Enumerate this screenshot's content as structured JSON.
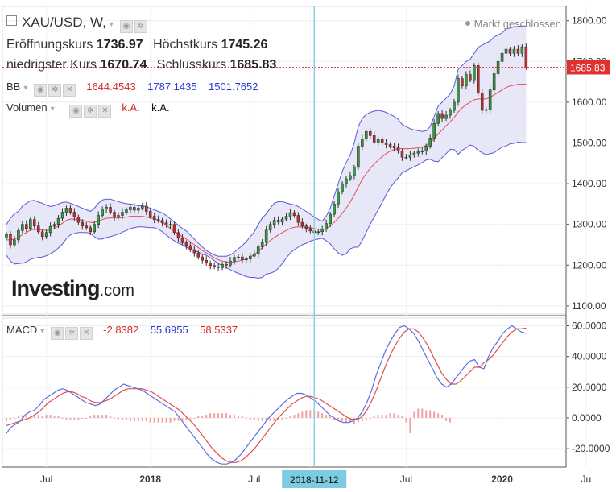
{
  "header": {
    "symbol": "XAU/USD, W,",
    "status": "Markt geschlossen",
    "open_label": "Eröffnungskurs",
    "open": "1736.97",
    "high_label": "Höchstkurs",
    "high": "1745.26",
    "low_label": "niedrigster Kurs",
    "low": "1670.74",
    "close_label": "Schlusskurs",
    "close": "1685.83"
  },
  "indicators": {
    "bb": {
      "label": "BB",
      "mid": "1644.4543",
      "upper": "1787.1435",
      "lower": "1501.7652"
    },
    "volume": {
      "label": "Volumen",
      "v1": "k.A.",
      "v2": "k.A."
    },
    "macd": {
      "label": "MACD",
      "hist": "-2.8382",
      "macd": "55.6955",
      "signal": "58.5337"
    }
  },
  "logo": {
    "brand": "Investing",
    "suffix": ".com"
  },
  "colors": {
    "up": "#2e9e3e",
    "down": "#d52a2a",
    "band_fill": "#e3e3f6",
    "band_line": "#5a5ad8",
    "mid_line": "#e05050",
    "macd_line": "#5a6ee0",
    "signal_line": "#e05050",
    "cursor": "#8fd0e0",
    "crosshair_tag": "#7ccbe0"
  },
  "chart_data": {
    "type": "line",
    "title": "XAU/USD, W",
    "price_axis": {
      "ticks": [
        "1800.00",
        "1700.00",
        "1600.00",
        "1500.00",
        "1400.00",
        "1300.00",
        "1200.00",
        "1100.00"
      ],
      "ylim": [
        1080,
        1835
      ],
      "last_price_label": "1685.83"
    },
    "macd_axis": {
      "ticks": [
        "60.0000",
        "40.0000",
        "20.0000",
        "0.0000",
        "-20.0000"
      ],
      "ylim": [
        -32,
        65
      ]
    },
    "x_axis": {
      "ticks": [
        "Jul",
        "2018",
        "Jul",
        "2018-11-12",
        "Jul",
        "2020",
        "Ju"
      ],
      "crosshair_label": "2018-11-12",
      "xlim": [
        0,
        140
      ]
    },
    "tick_positions": [
      10,
      36,
      62,
      76,
      100,
      124,
      145
    ],
    "crosshair_x": 77,
    "close_series": [
      1275,
      1250,
      1262,
      1285,
      1300,
      1290,
      1312,
      1296,
      1282,
      1270,
      1280,
      1295,
      1300,
      1315,
      1330,
      1340,
      1330,
      1318,
      1305,
      1296,
      1292,
      1282,
      1300,
      1322,
      1338,
      1342,
      1330,
      1318,
      1322,
      1330,
      1336,
      1342,
      1335,
      1340,
      1345,
      1332,
      1320,
      1312,
      1310,
      1304,
      1298,
      1300,
      1280,
      1266,
      1255,
      1248,
      1238,
      1230,
      1220,
      1212,
      1205,
      1199,
      1196,
      1194,
      1202,
      1200,
      1210,
      1219,
      1220,
      1213,
      1215,
      1222,
      1228,
      1245,
      1256,
      1286,
      1300,
      1310,
      1306,
      1313,
      1320,
      1329,
      1322,
      1305,
      1296,
      1290,
      1284,
      1280,
      1282,
      1288,
      1302,
      1325,
      1350,
      1380,
      1400,
      1412,
      1420,
      1440,
      1492,
      1510,
      1528,
      1518,
      1502,
      1510,
      1500,
      1496,
      1492,
      1488,
      1480,
      1465,
      1465,
      1470,
      1475,
      1478,
      1480,
      1492,
      1512,
      1548,
      1572,
      1560,
      1568,
      1580,
      1600,
      1658,
      1640,
      1668,
      1655,
      1690,
      1622,
      1580,
      1582,
      1630,
      1670,
      1700,
      1720,
      1730,
      1720,
      1730,
      1720,
      1736,
      1685
    ],
    "bb_upper_series": [
      1300,
      1315,
      1326,
      1332,
      1345,
      1352,
      1358,
      1359,
      1355,
      1352,
      1347,
      1344,
      1346,
      1350,
      1354,
      1355,
      1352,
      1348,
      1344,
      1340,
      1336,
      1332,
      1340,
      1352,
      1360,
      1362,
      1362,
      1359,
      1356,
      1353,
      1351,
      1350,
      1348,
      1346,
      1346,
      1343,
      1340,
      1336,
      1332,
      1328,
      1322,
      1314,
      1306,
      1298,
      1290,
      1284,
      1274,
      1264,
      1254,
      1245,
      1236,
      1230,
      1225,
      1222,
      1222,
      1222,
      1225,
      1232,
      1240,
      1248,
      1258,
      1270,
      1282,
      1300,
      1316,
      1326,
      1340,
      1352,
      1356,
      1356,
      1353,
      1350,
      1348,
      1344,
      1338,
      1332,
      1325,
      1318,
      1312,
      1308,
      1320,
      1340,
      1370,
      1400,
      1430,
      1452,
      1470,
      1500,
      1540,
      1560,
      1570,
      1575,
      1578,
      1580,
      1578,
      1575,
      1570,
      1565,
      1558,
      1545,
      1540,
      1535,
      1532,
      1530,
      1528,
      1530,
      1540,
      1565,
      1590,
      1600,
      1610,
      1620,
      1640,
      1680,
      1690,
      1700,
      1705,
      1720,
      1735,
      1740,
      1745,
      1750,
      1760,
      1765,
      1770,
      1780,
      1782,
      1785,
      1786,
      1787,
      1787
    ],
    "bb_mid_series": [
      1262,
      1262,
      1264,
      1268,
      1275,
      1280,
      1286,
      1288,
      1287,
      1286,
      1285,
      1286,
      1290,
      1296,
      1303,
      1310,
      1313,
      1313,
      1312,
      1310,
      1308,
      1305,
      1305,
      1308,
      1312,
      1315,
      1316,
      1316,
      1316,
      1317,
      1318,
      1320,
      1320,
      1320,
      1320,
      1318,
      1316,
      1314,
      1310,
      1305,
      1298,
      1290,
      1283,
      1276,
      1270,
      1264,
      1257,
      1250,
      1243,
      1236,
      1230,
      1224,
      1218,
      1213,
      1210,
      1208,
      1207,
      1208,
      1210,
      1212,
      1215,
      1220,
      1226,
      1234,
      1243,
      1252,
      1260,
      1268,
      1274,
      1280,
      1285,
      1290,
      1293,
      1294,
      1294,
      1293,
      1292,
      1290,
      1288,
      1287,
      1290,
      1296,
      1305,
      1315,
      1327,
      1340,
      1355,
      1372,
      1392,
      1410,
      1425,
      1438,
      1448,
      1458,
      1466,
      1474,
      1480,
      1484,
      1486,
      1486,
      1486,
      1486,
      1487,
      1488,
      1490,
      1494,
      1500,
      1510,
      1522,
      1532,
      1542,
      1552,
      1562,
      1576,
      1586,
      1594,
      1600,
      1606,
      1608,
      1608,
      1608,
      1612,
      1618,
      1624,
      1630,
      1636,
      1640,
      1642,
      1644,
      1644,
      1644
    ],
    "bb_lower_series": [
      1224,
      1210,
      1203,
      1204,
      1205,
      1208,
      1214,
      1217,
      1219,
      1220,
      1223,
      1228,
      1234,
      1242,
      1252,
      1265,
      1274,
      1278,
      1280,
      1280,
      1280,
      1278,
      1270,
      1264,
      1264,
      1268,
      1270,
      1273,
      1276,
      1281,
      1285,
      1290,
      1292,
      1294,
      1294,
      1293,
      1292,
      1292,
      1288,
      1282,
      1274,
      1266,
      1260,
      1254,
      1250,
      1244,
      1240,
      1236,
      1232,
      1227,
      1224,
      1218,
      1211,
      1204,
      1198,
      1194,
      1189,
      1184,
      1180,
      1176,
      1172,
      1170,
      1170,
      1168,
      1170,
      1178,
      1180,
      1184,
      1192,
      1204,
      1217,
      1230,
      1238,
      1244,
      1250,
      1254,
      1259,
      1262,
      1264,
      1266,
      1260,
      1252,
      1240,
      1230,
      1224,
      1228,
      1240,
      1244,
      1244,
      1260,
      1280,
      1301,
      1318,
      1336,
      1354,
      1373,
      1390,
      1403,
      1414,
      1427,
      1432,
      1437,
      1442,
      1446,
      1452,
      1458,
      1460,
      1455,
      1454,
      1464,
      1474,
      1484,
      1484,
      1472,
      1482,
      1488,
      1495,
      1492,
      1481,
      1476,
      1471,
      1474,
      1476,
      1483,
      1490,
      1492,
      1498,
      1499,
      1502,
      1501,
      1501
    ],
    "macd_series": [
      -10,
      -6,
      -4,
      -2,
      2,
      4,
      5,
      8,
      12,
      14,
      16,
      18,
      19,
      18,
      16,
      14,
      12,
      10,
      9,
      8,
      9,
      12,
      15,
      18,
      20,
      22,
      21,
      20,
      19,
      18,
      16,
      14,
      12,
      10,
      8,
      6,
      4,
      0,
      -4,
      -8,
      -12,
      -16,
      -20,
      -24,
      -27,
      -29,
      -30,
      -30,
      -29,
      -27,
      -24,
      -20,
      -16,
      -12,
      -8,
      -4,
      0,
      3,
      6,
      9,
      12,
      14,
      16,
      16,
      15,
      13,
      11,
      8,
      5,
      2,
      0,
      -2,
      -3,
      -3,
      -2,
      0,
      4,
      10,
      18,
      28,
      36,
      44,
      50,
      55,
      59,
      60,
      58,
      55,
      50,
      44,
      38,
      32,
      26,
      22,
      20,
      22,
      26,
      30,
      34,
      37,
      38,
      33,
      32,
      40,
      46,
      50,
      55,
      58,
      60,
      58,
      56,
      55
    ],
    "signal_series": [
      -5,
      -4,
      -3,
      -2,
      -1,
      0,
      2,
      4,
      7,
      10,
      12,
      14,
      16,
      17,
      17,
      16,
      14,
      13,
      11,
      10,
      10,
      11,
      12,
      14,
      16,
      18,
      19,
      19,
      19,
      19,
      18,
      17,
      15,
      13,
      11,
      9,
      7,
      5,
      2,
      -1,
      -4,
      -8,
      -12,
      -16,
      -20,
      -23,
      -26,
      -28,
      -29,
      -29,
      -28,
      -26,
      -23,
      -20,
      -16,
      -12,
      -8,
      -4,
      0,
      3,
      6,
      9,
      11,
      13,
      14,
      14,
      13,
      12,
      10,
      8,
      6,
      4,
      2,
      0,
      -1,
      -1,
      1,
      5,
      11,
      18,
      26,
      34,
      41,
      47,
      52,
      56,
      58,
      58,
      56,
      52,
      47,
      41,
      35,
      29,
      25,
      22,
      22,
      24,
      27,
      30,
      33,
      33,
      36,
      38,
      41,
      45,
      49,
      53,
      56,
      58,
      58,
      58.5
    ],
    "hist_series": [
      -2,
      -1,
      0,
      1,
      2,
      1,
      1,
      2,
      2,
      1,
      2,
      2,
      1,
      1,
      0,
      -1,
      -1,
      -1,
      -1,
      0,
      0,
      1,
      2,
      2,
      2,
      2,
      1,
      0,
      -1,
      -1,
      -1,
      -2,
      -2,
      -2,
      -2,
      -2,
      -3,
      -3,
      -3,
      -3,
      -3,
      -3,
      -2,
      -2,
      -2,
      -1,
      -1,
      0,
      1,
      1,
      2,
      3,
      3,
      3,
      3,
      3,
      2,
      2,
      1,
      1,
      0,
      -1,
      -1,
      -2,
      -2,
      -2,
      -2,
      -2,
      -1,
      -1,
      0,
      1,
      2,
      3,
      4,
      5,
      5,
      5,
      4,
      3,
      2,
      1,
      -1,
      -2,
      -2,
      -3,
      -3,
      -4,
      -3,
      -2,
      -1,
      0,
      1,
      2,
      2,
      2,
      3,
      3,
      2,
      1,
      -3,
      -10,
      4,
      6,
      6,
      5,
      5,
      4,
      3,
      2,
      -2,
      -3
    ]
  }
}
